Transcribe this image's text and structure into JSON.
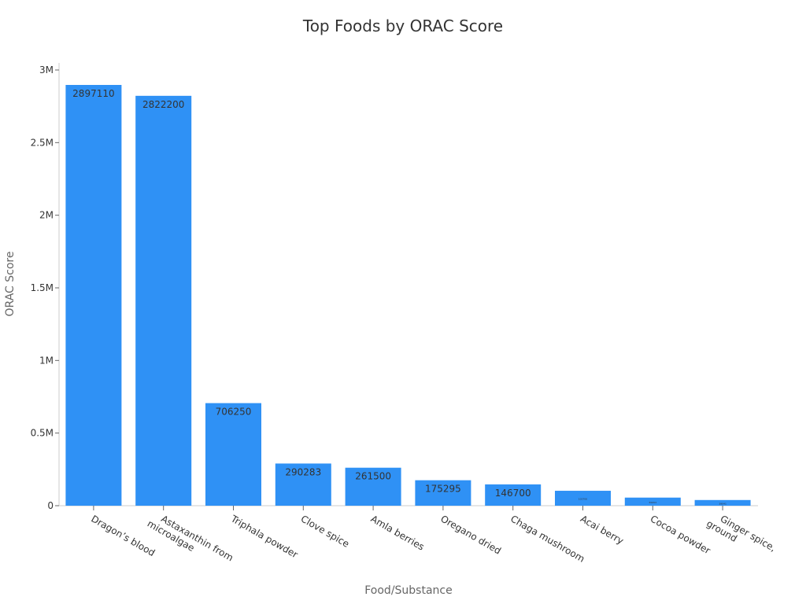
{
  "chart_data": {
    "type": "bar",
    "title": "Top Foods by ORAC Score",
    "xlabel": "Food/Substance",
    "ylabel": "ORAC Score",
    "categories": [
      "Dragon’s blood",
      "Astaxanthin from microalgae",
      "Triphala powder",
      "Clove spice",
      "Amla berries",
      "Oregano dried",
      "Chaga mushroom",
      "Acai berry",
      "Cocoa powder",
      "Ginger spice, ground"
    ],
    "category_lines": [
      [
        "Dragon’s blood"
      ],
      [
        "Astaxanthin from",
        "microalgae"
      ],
      [
        "Triphala powder"
      ],
      [
        "Clove spice"
      ],
      [
        "Amla berries"
      ],
      [
        "Oregano dried"
      ],
      [
        "Chaga mushroom"
      ],
      [
        "Acai berry"
      ],
      [
        "Cocoa powder"
      ],
      [
        "Ginger spice,",
        "ground"
      ]
    ],
    "values": [
      2897110,
      2822200,
      706250,
      290283,
      261500,
      175295,
      146700,
      102700,
      55653,
      39041
    ],
    "data_labels": [
      "2897110",
      "2822200",
      "706250",
      "290283",
      "261500",
      "175295",
      "146700",
      "102700",
      "55653",
      "39041"
    ],
    "ylim": [
      0,
      3000000
    ],
    "yticks": [
      0,
      500000,
      1000000,
      1500000,
      2000000,
      2500000,
      3000000
    ],
    "ytick_labels": [
      "0",
      "0.5M",
      "1M",
      "1.5M",
      "2M",
      "2.5M",
      "3M"
    ],
    "grid": false,
    "bar_color": "#2f91f5"
  }
}
